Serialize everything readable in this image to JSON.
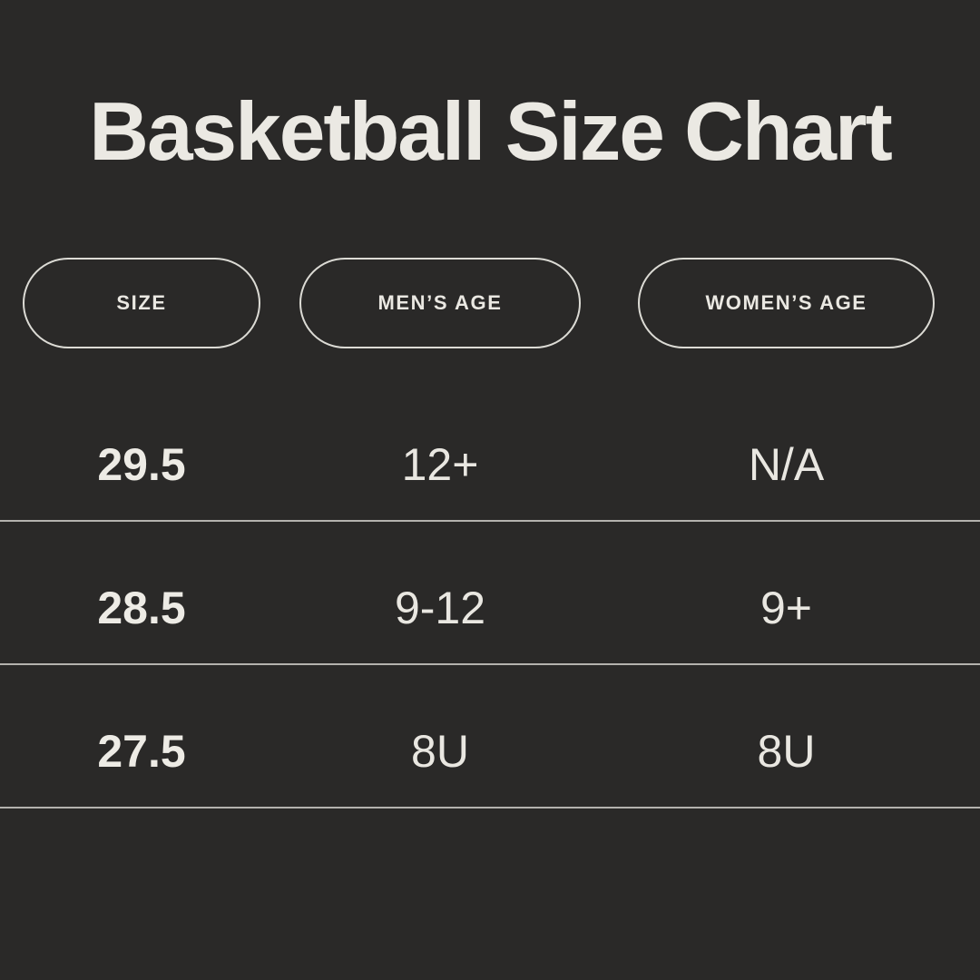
{
  "page": {
    "background_color": "#2a2928",
    "text_color": "#eae8e2",
    "divider_color": "#d7d5cf",
    "pill_border_color": "#eceae4"
  },
  "chart_data": {
    "type": "table",
    "title": "Basketball Size Chart",
    "columns": [
      "SIZE",
      "MEN’S AGE",
      "WOMEN’S AGE"
    ],
    "rows": [
      [
        "29.5",
        "12+",
        "N/A"
      ],
      [
        "28.5",
        "9-12",
        "9+"
      ],
      [
        "27.5",
        "8U",
        "8U"
      ]
    ]
  }
}
